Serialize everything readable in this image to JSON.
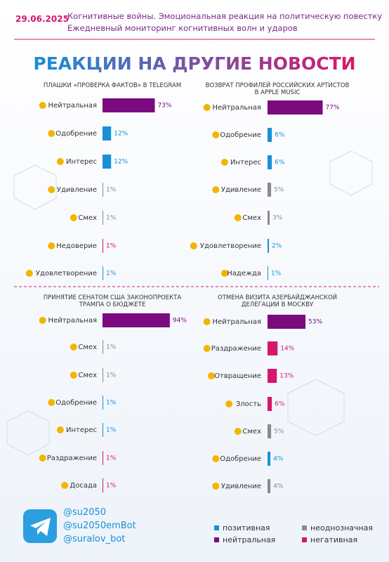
{
  "header": {
    "date": "29.06.2025",
    "line1": "Когнитивные войны. Эмоциональная реакция на политическую повестку",
    "line2": "Ежедневный мониторинг когнитивных волн и ударов",
    "title": "РЕАКЦИИ НА ДРУГИЕ НОВОСТИ"
  },
  "chart_data": [
    {
      "type": "bar",
      "title": "ПЛАШКИ «ПРОВЕРКА ФАКТОВ» В TELEGRAM",
      "categories": [
        "Нейтральная",
        "Одобрение",
        "Интерес",
        "Удивление",
        "Смех",
        "Недоверие",
        "Удовлетворение"
      ],
      "values": [
        73,
        12,
        12,
        1,
        1,
        1,
        1
      ],
      "value_labels": [
        "73%",
        "12%",
        "12%",
        "1%",
        "1%",
        "1%",
        "1%"
      ],
      "colors": [
        "#7b0a7e",
        "#1a8fd6",
        "#1a8fd6",
        "#8a8a8a",
        "#8a8a8a",
        "#d6176e",
        "#1a8fd6"
      ]
    },
    {
      "type": "bar",
      "title": "ВОЗВРАТ ПРОФИЛЕЙ РОССИЙСКИХ АРТИСТОВ В APPLE MUSIC",
      "categories": [
        "Нейтральная",
        "Одобрение",
        "Интерес",
        "Удивление",
        "Смех",
        "Удовлетворение",
        "Надежда"
      ],
      "values": [
        77,
        6,
        6,
        5,
        3,
        2,
        1
      ],
      "value_labels": [
        "77%",
        "6%",
        "6%",
        "5%",
        "3%",
        "2%",
        "1%"
      ],
      "colors": [
        "#7b0a7e",
        "#1a8fd6",
        "#1a8fd6",
        "#8a8a8a",
        "#8a8a8a",
        "#1a8fd6",
        "#1a8fd6"
      ]
    },
    {
      "type": "bar",
      "title": "ПРИНЯТИЕ СЕНАТОМ США ЗАКОНОПРОЕКТА ТРАМПА О БЮДЖЕТЕ",
      "categories": [
        "Нейтральная",
        "Смех",
        "Смех",
        "Одобрение",
        "Интерес",
        "Раздражение",
        "Досада"
      ],
      "values": [
        94,
        1,
        1,
        1,
        1,
        1,
        1
      ],
      "value_labels": [
        "94%",
        "1%",
        "1%",
        "1%",
        "1%",
        "1%",
        "1%"
      ],
      "colors": [
        "#7b0a7e",
        "#8a8a8a",
        "#8a8a8a",
        "#1a8fd6",
        "#1a8fd6",
        "#d6176e",
        "#d6176e"
      ]
    },
    {
      "type": "bar",
      "title": "ОТМЕНА ВИЗИТА АЗЕРБАЙДЖАНСКОЙ ДЕЛЕГАЦИИ В МОСКВУ",
      "categories": [
        "Нейтральная",
        "Раздражение",
        "Отвращение",
        "Злость",
        "Смех",
        "Одобрение",
        "Удивление"
      ],
      "values": [
        53,
        14,
        13,
        6,
        5,
        4,
        4
      ],
      "value_labels": [
        "53%",
        "14%",
        "13%",
        "6%",
        "5%",
        "4%",
        "4%"
      ],
      "colors": [
        "#7b0a7e",
        "#d6176e",
        "#d6176e",
        "#d6176e",
        "#8a8a8a",
        "#1a8fd6",
        "#8a8a8a"
      ]
    }
  ],
  "footer": {
    "handles": [
      "@su2050",
      "@su2050emBot",
      "@suralov_bot"
    ]
  },
  "legend": [
    {
      "label": "позитивная",
      "color": "#1a8fd6"
    },
    {
      "label": "неоднозначная",
      "color": "#8a8a8a"
    },
    {
      "label": "нейтральная",
      "color": "#7b0a7e"
    },
    {
      "label": "негативная",
      "color": "#d6176e"
    }
  ]
}
